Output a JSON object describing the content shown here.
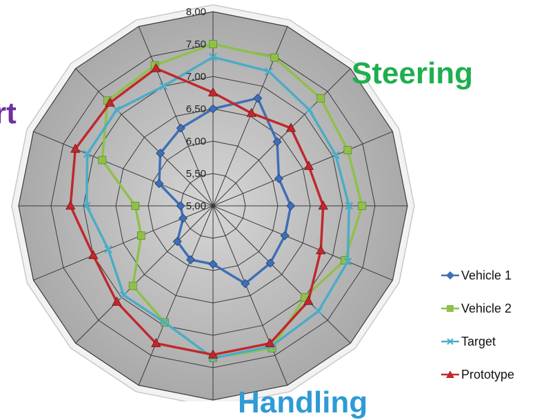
{
  "chart_data": {
    "type": "radar",
    "title": "",
    "axes_count": 16,
    "rlim": [
      5.0,
      8.0
    ],
    "tick_labels": [
      "5,00",
      "5,50",
      "6,00",
      "6,50",
      "7,00",
      "7,50",
      "8,00"
    ],
    "tick_values": [
      5.0,
      5.5,
      6.0,
      6.5,
      7.0,
      7.5,
      8.0
    ],
    "grid": true,
    "legend_position": "bottom-right",
    "category_labels": [
      {
        "text": "Steering",
        "color": "#1fae4f"
      },
      {
        "text": "rt",
        "color": "#7030a0"
      },
      {
        "text": "Handling",
        "color": "#2e9bd6"
      }
    ],
    "series": [
      {
        "name": "Vehicle 1",
        "color": "#3f6fb5",
        "marker": "diamond",
        "values": [
          6.5,
          6.8,
          6.4,
          6.1,
          6.2,
          6.2,
          6.25,
          6.3,
          5.9,
          5.9,
          5.78,
          5.5,
          5.5,
          5.9,
          6.15,
          6.3
        ]
      },
      {
        "name": "Vehicle 2",
        "color": "#8fc04a",
        "marker": "square",
        "values": [
          7.5,
          7.48,
          7.35,
          7.25,
          7.3,
          7.2,
          7.0,
          7.38,
          7.35,
          6.95,
          6.75,
          6.2,
          6.2,
          6.85,
          7.3,
          7.35
        ]
      },
      {
        "name": "Target",
        "color": "#4bacc6",
        "marker": "cross",
        "values": [
          7.3,
          7.25,
          7.1,
          7.05,
          7.1,
          7.25,
          7.3,
          7.35,
          7.35,
          6.95,
          6.95,
          6.75,
          6.95,
          7.1,
          7.1,
          7.0
        ]
      },
      {
        "name": "Prototype",
        "color": "#c0282c",
        "marker": "triangle",
        "values": [
          6.75,
          6.55,
          6.7,
          6.6,
          6.7,
          6.8,
          7.08,
          7.3,
          7.3,
          7.3,
          7.1,
          7.0,
          7.2,
          7.3,
          7.25,
          7.3
        ]
      }
    ]
  }
}
